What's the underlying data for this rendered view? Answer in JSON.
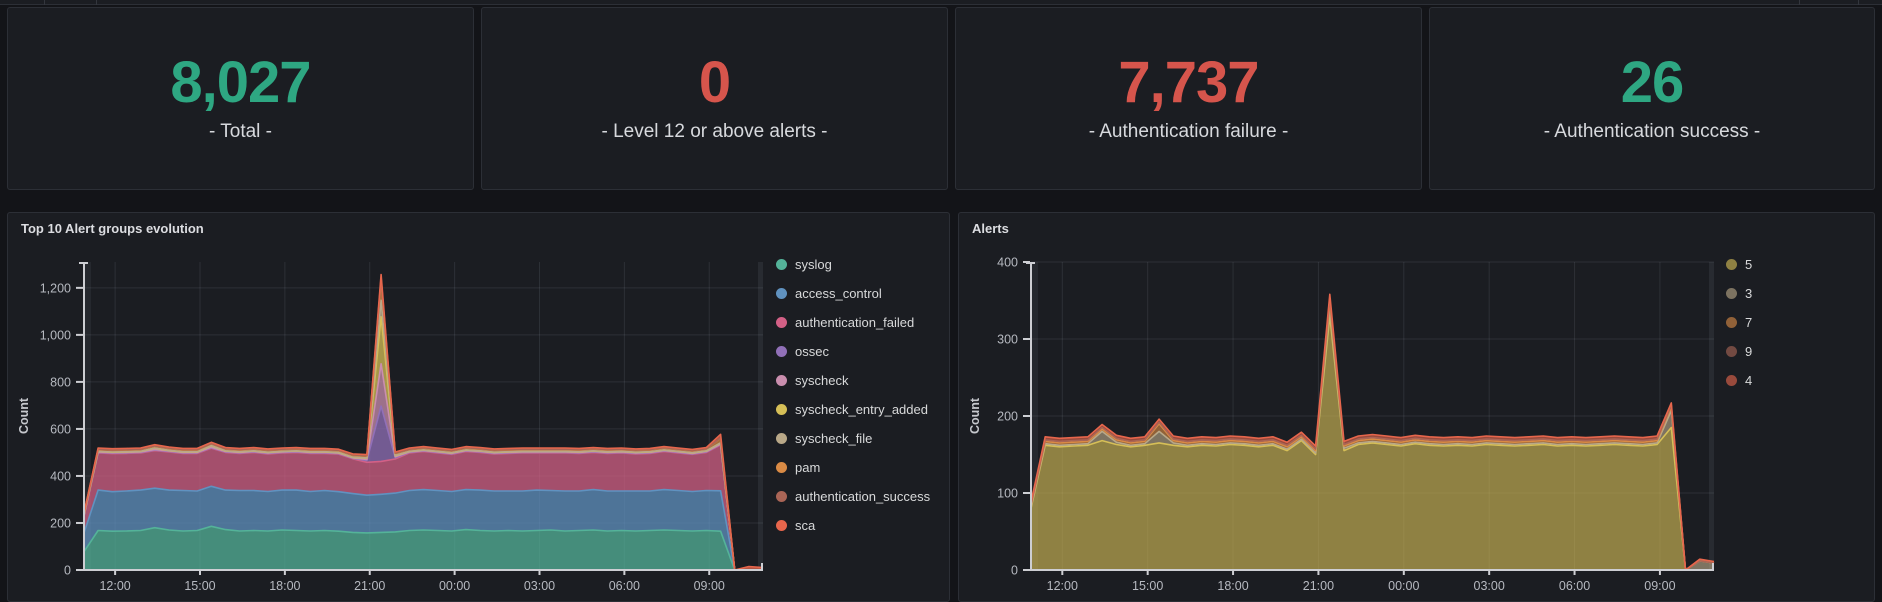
{
  "colors": {
    "teal": "#2EA782",
    "red": "#D6554C",
    "panel_bg": "#1b1d22",
    "page_bg": "#131418",
    "grid": "rgba(210,220,240,0.10)",
    "axis": "#cdced3",
    "tick_label": "#b6b9c0"
  },
  "stats": [
    {
      "value": "8,027",
      "label": "- Total -",
      "color": "#2EA782"
    },
    {
      "value": "0",
      "label": "- Level 12 or above alerts -",
      "color": "#D6554C"
    },
    {
      "value": "7,737",
      "label": "- Authentication failure -",
      "color": "#D6554C"
    },
    {
      "value": "26",
      "label": "- Authentication success -",
      "color": "#2EA782"
    }
  ],
  "chart_data": [
    {
      "type": "area",
      "stacked": true,
      "title": "Top 10 Alert groups evolution",
      "ylabel": "Count",
      "xlim": [
        10.9,
        34.9
      ],
      "ylim": [
        0,
        1310
      ],
      "yticks": [
        0,
        200,
        400,
        600,
        800,
        1000,
        1200
      ],
      "ytick_labels": [
        "0",
        "200",
        "400",
        "600",
        "800",
        "1,000",
        "1,200"
      ],
      "xtick_hours": [
        12,
        15,
        18,
        21,
        24,
        27,
        30,
        33
      ],
      "xtick_labels": [
        "12:00",
        "15:00",
        "18:00",
        "21:00",
        "00:00",
        "03:00",
        "06:00",
        "09:00"
      ],
      "grid": true,
      "legend_position": "right",
      "fill_alpha": 0.75,
      "legend_alpha": 1,
      "x_hours": [
        10.9,
        11.4,
        11.9,
        12.4,
        12.9,
        13.4,
        13.9,
        14.4,
        14.9,
        15.4,
        15.9,
        16.4,
        16.9,
        17.4,
        17.9,
        18.4,
        18.9,
        19.4,
        19.9,
        20.4,
        20.9,
        21.4,
        21.9,
        22.4,
        22.9,
        23.4,
        23.9,
        24.4,
        24.9,
        25.4,
        25.9,
        26.4,
        26.9,
        27.4,
        27.9,
        28.4,
        28.9,
        29.4,
        29.9,
        30.4,
        30.9,
        31.4,
        31.9,
        32.4,
        32.9,
        33.4,
        33.9,
        34.4,
        34.9
      ],
      "series": [
        {
          "name": "syslog",
          "color": "#54B399",
          "values": [
            78,
            168,
            165,
            166,
            168,
            180,
            170,
            166,
            168,
            186,
            172,
            166,
            168,
            166,
            170,
            168,
            166,
            168,
            165,
            160,
            158,
            160,
            162,
            168,
            170,
            168,
            166,
            172,
            168,
            166,
            168,
            166,
            168,
            170,
            166,
            168,
            170,
            166,
            168,
            166,
            168,
            170,
            168,
            166,
            168,
            165,
            0,
            0,
            0
          ]
        },
        {
          "name": "access_control",
          "color": "#6092C0",
          "values": [
            80,
            172,
            168,
            170,
            172,
            168,
            170,
            172,
            168,
            170,
            168,
            172,
            170,
            168,
            170,
            172,
            168,
            170,
            168,
            165,
            160,
            162,
            165,
            170,
            172,
            170,
            168,
            170,
            172,
            170,
            168,
            170,
            172,
            168,
            170,
            168,
            172,
            170,
            168,
            170,
            168,
            172,
            170,
            168,
            170,
            172,
            0,
            0,
            0
          ]
        },
        {
          "name": "authentication_failed",
          "color": "#D36086",
          "values": [
            70,
            158,
            162,
            160,
            158,
            160,
            162,
            158,
            160,
            162,
            160,
            158,
            162,
            160,
            158,
            160,
            162,
            158,
            160,
            148,
            140,
            140,
            145,
            160,
            162,
            160,
            158,
            162,
            160,
            158,
            160,
            162,
            158,
            160,
            162,
            160,
            158,
            160,
            162,
            158,
            160,
            162,
            160,
            158,
            162,
            195,
            0,
            0,
            0
          ]
        },
        {
          "name": "ossec",
          "color": "#9170B8",
          "values": [
            2,
            2,
            2,
            2,
            2,
            2,
            2,
            2,
            2,
            2,
            2,
            2,
            2,
            2,
            2,
            2,
            2,
            2,
            2,
            2,
            8,
            235,
            6,
            2,
            2,
            2,
            2,
            2,
            2,
            2,
            2,
            2,
            2,
            2,
            2,
            2,
            2,
            2,
            2,
            2,
            2,
            2,
            2,
            2,
            2,
            2,
            0,
            0,
            0
          ]
        },
        {
          "name": "syscheck",
          "color": "#CA8EAE",
          "values": [
            2,
            2,
            2,
            2,
            2,
            2,
            2,
            2,
            2,
            2,
            2,
            2,
            2,
            2,
            2,
            2,
            2,
            2,
            2,
            2,
            4,
            180,
            4,
            2,
            2,
            2,
            2,
            2,
            2,
            2,
            2,
            2,
            2,
            2,
            2,
            2,
            2,
            2,
            2,
            2,
            2,
            2,
            2,
            2,
            2,
            2,
            0,
            0,
            0
          ]
        },
        {
          "name": "syscheck_entry_added",
          "color": "#D6BF57",
          "values": [
            2,
            2,
            2,
            2,
            2,
            6,
            2,
            2,
            2,
            6,
            2,
            2,
            2,
            2,
            2,
            2,
            2,
            2,
            2,
            2,
            6,
            200,
            4,
            2,
            2,
            2,
            2,
            2,
            2,
            2,
            2,
            2,
            2,
            2,
            2,
            2,
            2,
            2,
            2,
            2,
            2,
            2,
            2,
            2,
            2,
            4,
            0,
            0,
            0
          ]
        },
        {
          "name": "syscheck_file",
          "color": "#B9A888",
          "values": [
            1,
            1,
            1,
            1,
            1,
            1,
            1,
            1,
            1,
            1,
            1,
            1,
            1,
            1,
            1,
            1,
            1,
            1,
            1,
            1,
            1,
            70,
            2,
            1,
            1,
            1,
            1,
            1,
            1,
            1,
            1,
            1,
            1,
            1,
            1,
            1,
            1,
            1,
            1,
            1,
            1,
            1,
            1,
            1,
            1,
            1,
            0,
            0,
            0
          ]
        },
        {
          "name": "pam",
          "color": "#DA8B45",
          "values": [
            4,
            8,
            8,
            8,
            8,
            8,
            8,
            8,
            8,
            8,
            8,
            8,
            8,
            8,
            8,
            8,
            8,
            8,
            8,
            8,
            8,
            90,
            8,
            8,
            8,
            8,
            8,
            8,
            8,
            8,
            8,
            8,
            8,
            8,
            8,
            8,
            8,
            8,
            8,
            8,
            8,
            8,
            8,
            8,
            8,
            20,
            0,
            0,
            0
          ]
        },
        {
          "name": "authentication_success",
          "color": "#AA6556",
          "values": [
            1,
            1,
            1,
            1,
            1,
            1,
            1,
            1,
            1,
            1,
            1,
            1,
            1,
            1,
            1,
            1,
            1,
            1,
            1,
            1,
            1,
            5,
            1,
            1,
            1,
            1,
            1,
            1,
            1,
            1,
            1,
            1,
            1,
            1,
            1,
            1,
            1,
            1,
            1,
            1,
            1,
            1,
            1,
            1,
            1,
            1,
            0,
            0,
            0
          ]
        },
        {
          "name": "sca",
          "color": "#E7664C",
          "values": [
            3,
            5,
            5,
            5,
            5,
            5,
            5,
            5,
            5,
            5,
            5,
            5,
            5,
            5,
            5,
            5,
            5,
            5,
            5,
            5,
            5,
            15,
            5,
            5,
            5,
            5,
            5,
            5,
            5,
            5,
            5,
            5,
            5,
            5,
            5,
            5,
            5,
            5,
            5,
            5,
            5,
            5,
            5,
            5,
            5,
            15,
            0,
            15,
            10
          ]
        }
      ]
    },
    {
      "type": "area",
      "stacked": true,
      "title": "Alerts",
      "ylabel": "Count",
      "xlim": [
        10.9,
        34.9
      ],
      "ylim": [
        0,
        400
      ],
      "yticks": [
        0,
        100,
        200,
        300,
        400
      ],
      "ytick_labels": [
        "0",
        "100",
        "200",
        "300",
        "400"
      ],
      "xtick_hours": [
        12,
        15,
        18,
        21,
        24,
        27,
        30,
        33
      ],
      "xtick_labels": [
        "12:00",
        "15:00",
        "18:00",
        "21:00",
        "00:00",
        "03:00",
        "06:00",
        "09:00"
      ],
      "grid": true,
      "legend_position": "right",
      "fill_alpha": 0.62,
      "legend_alpha": 0.62,
      "x_hours": [
        10.9,
        11.4,
        11.9,
        12.4,
        12.9,
        13.4,
        13.9,
        14.4,
        14.9,
        15.4,
        15.9,
        16.4,
        16.9,
        17.4,
        17.9,
        18.4,
        18.9,
        19.4,
        19.9,
        20.4,
        20.9,
        21.4,
        21.9,
        22.4,
        22.9,
        23.4,
        23.9,
        24.4,
        24.9,
        25.4,
        25.9,
        26.4,
        26.9,
        27.4,
        27.9,
        28.4,
        28.9,
        29.4,
        29.9,
        30.4,
        30.9,
        31.4,
        31.9,
        32.4,
        32.9,
        33.4,
        33.9,
        34.4,
        34.9
      ],
      "series": [
        {
          "name": "5",
          "color": "#D6BF57",
          "values": [
            80,
            162,
            160,
            161,
            162,
            168,
            163,
            160,
            162,
            165,
            162,
            160,
            162,
            161,
            163,
            162,
            160,
            162,
            155,
            168,
            150,
            330,
            155,
            163,
            165,
            163,
            161,
            164,
            162,
            161,
            162,
            161,
            163,
            162,
            161,
            162,
            163,
            161,
            162,
            161,
            162,
            163,
            162,
            161,
            163,
            185,
            0,
            0,
            0
          ]
        },
        {
          "name": "3",
          "color": "#B9A888",
          "values": [
            2,
            2,
            2,
            2,
            2,
            12,
            3,
            2,
            2,
            15,
            3,
            2,
            2,
            2,
            2,
            2,
            2,
            2,
            2,
            2,
            2,
            10,
            3,
            2,
            2,
            2,
            2,
            2,
            2,
            2,
            2,
            2,
            2,
            2,
            2,
            2,
            2,
            2,
            2,
            2,
            2,
            2,
            2,
            2,
            2,
            22,
            0,
            12,
            9
          ]
        },
        {
          "name": "7",
          "color": "#DA8B45",
          "values": [
            2,
            3,
            3,
            3,
            3,
            3,
            3,
            3,
            3,
            10,
            3,
            3,
            3,
            3,
            3,
            3,
            3,
            3,
            3,
            3,
            3,
            8,
            3,
            3,
            3,
            3,
            3,
            3,
            3,
            3,
            3,
            3,
            3,
            3,
            3,
            3,
            3,
            3,
            3,
            3,
            3,
            3,
            3,
            3,
            3,
            5,
            0,
            0,
            0
          ]
        },
        {
          "name": "9",
          "color": "#AA6556",
          "values": [
            1,
            2,
            2,
            2,
            2,
            2,
            2,
            2,
            2,
            2,
            2,
            2,
            2,
            2,
            2,
            2,
            2,
            2,
            2,
            2,
            2,
            5,
            2,
            2,
            2,
            2,
            2,
            2,
            2,
            2,
            2,
            2,
            2,
            2,
            2,
            2,
            2,
            2,
            2,
            2,
            2,
            2,
            2,
            2,
            2,
            2,
            0,
            0,
            0
          ]
        },
        {
          "name": "4",
          "color": "#E7664C",
          "values": [
            3,
            4,
            4,
            4,
            4,
            4,
            4,
            4,
            4,
            4,
            4,
            4,
            4,
            4,
            4,
            4,
            4,
            4,
            4,
            4,
            4,
            5,
            4,
            4,
            4,
            4,
            4,
            4,
            4,
            4,
            4,
            4,
            4,
            4,
            4,
            4,
            4,
            4,
            4,
            4,
            4,
            4,
            4,
            4,
            4,
            3,
            0,
            2,
            2
          ]
        }
      ]
    }
  ]
}
